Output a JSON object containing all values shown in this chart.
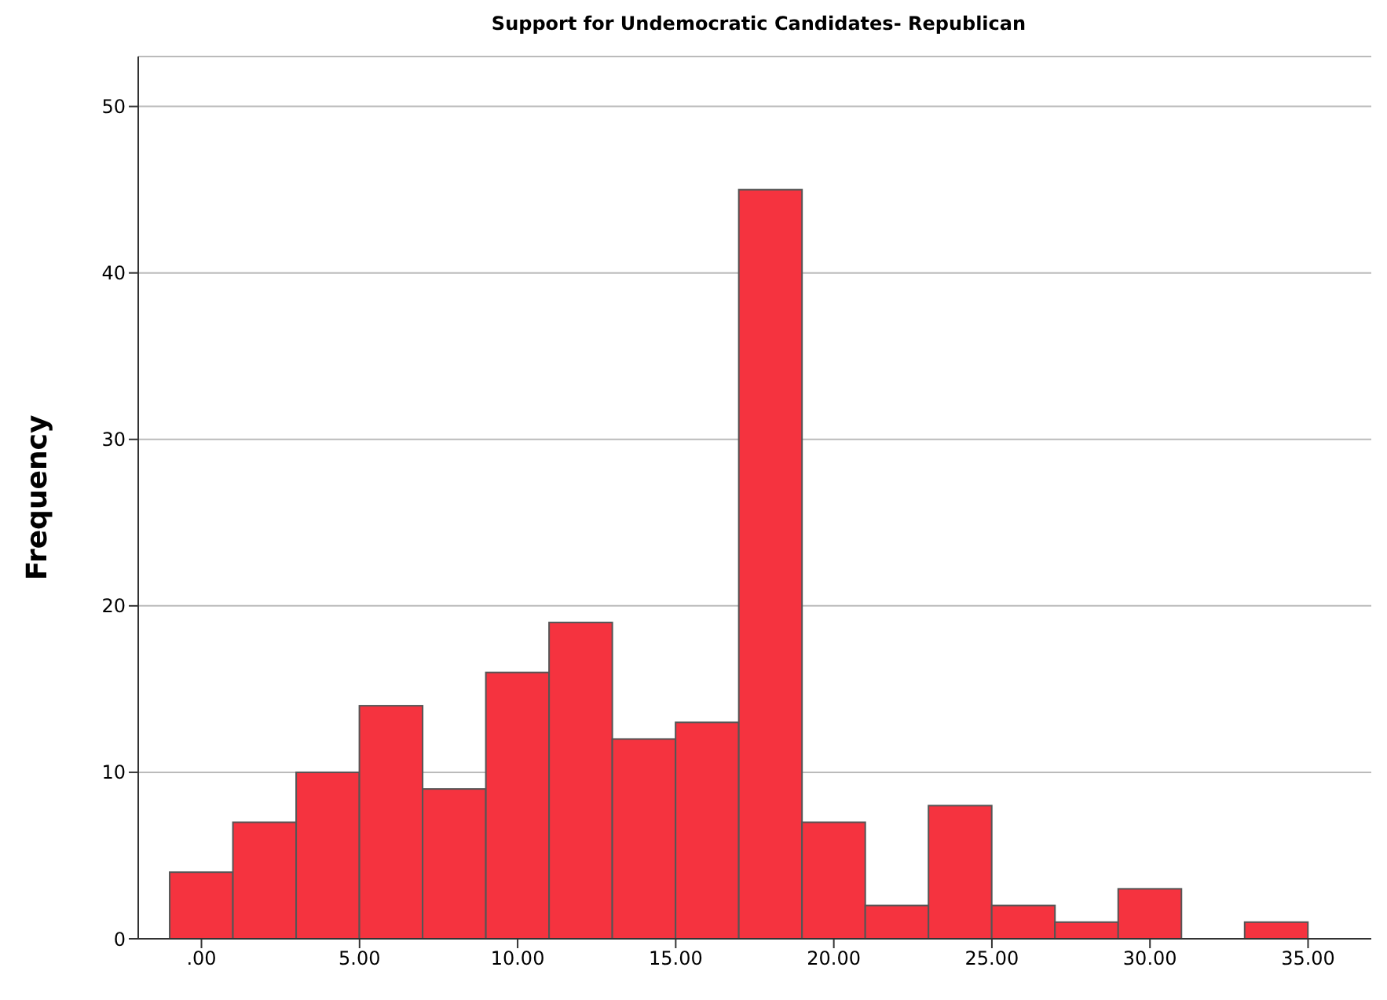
{
  "chart_data": {
    "type": "histogram",
    "title": "Support for Undemocratic Candidates- Republican",
    "ylabel": "Frequency",
    "bins": [
      -1,
      1,
      3,
      5,
      7,
      9,
      11,
      13,
      15,
      17,
      19,
      21,
      23,
      25,
      27,
      29,
      31,
      33,
      35
    ],
    "values": [
      4,
      7,
      10,
      14,
      9,
      16,
      19,
      12,
      13,
      45,
      7,
      2,
      8,
      2,
      1,
      3,
      0,
      1
    ],
    "color": "#f5333f",
    "xlim": [
      -2,
      37
    ],
    "xticks": [
      {
        "value": 0,
        "label": ".00"
      },
      {
        "value": 5,
        "label": "5.00"
      },
      {
        "value": 10,
        "label": "10.00"
      },
      {
        "value": 15,
        "label": "15.00"
      },
      {
        "value": 20,
        "label": "20.00"
      },
      {
        "value": 25,
        "label": "25.00"
      },
      {
        "value": 30,
        "label": "30.00"
      },
      {
        "value": 35,
        "label": "35.00"
      }
    ],
    "ylim": [
      0,
      53
    ],
    "yticks": [
      0,
      10,
      20,
      30,
      40,
      50
    ],
    "grid": "y",
    "legend": false
  }
}
